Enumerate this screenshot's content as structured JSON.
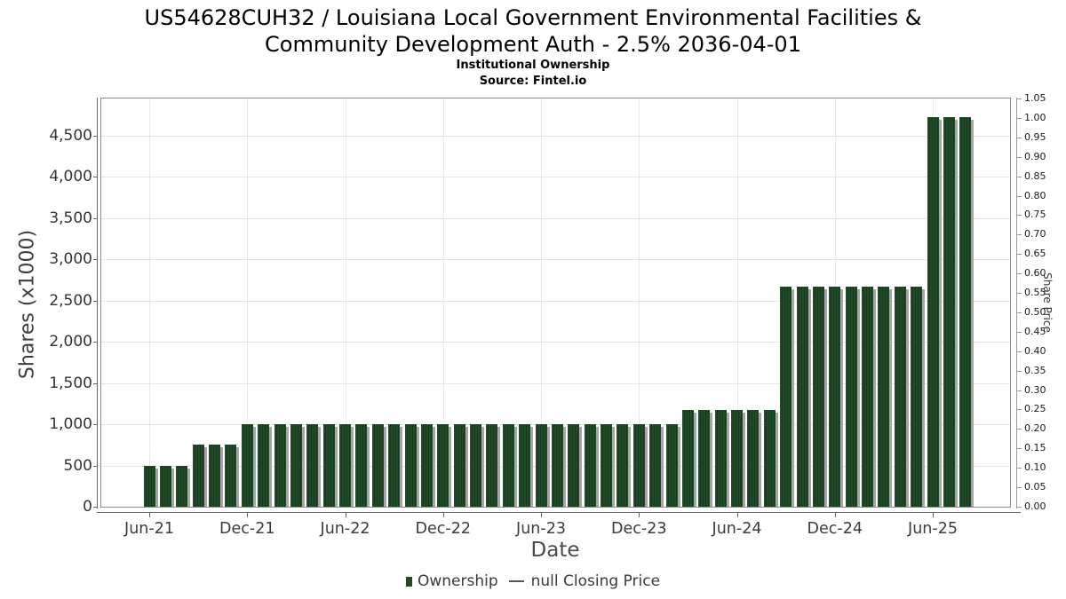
{
  "chart_data": {
    "type": "bar",
    "title": "US54628CUH32 / Louisiana Local Government Environmental Facilities & Community Development Auth - 2.5% 2036-04-01",
    "title_line1": "US54628CUH32 / Louisiana Local Government Environmental Facilities &",
    "title_line2": "Community Development Auth - 2.5% 2036-04-01",
    "subtitle": "Institutional Ownership",
    "source": "Source: Fintel.io",
    "xlabel": "Date",
    "ylabel_left": "Shares (x1000)",
    "ylabel_right": "Share Price",
    "legend_position": "bottom",
    "grid": true,
    "legend": [
      {
        "marker": "bar-swatch",
        "label": "Ownership",
        "color": "#204b26"
      },
      {
        "marker": "line-dash",
        "label": "null Closing Price",
        "color": "#555555"
      }
    ],
    "bar_color": "#204b26",
    "bar_stripe_color": "#16381c",
    "bar_shadow_color": "#a6a6a6",
    "categories": [
      "Jun-21",
      "Jul-21",
      "Aug-21",
      "Sep-21",
      "Oct-21",
      "Nov-21",
      "Dec-21",
      "Jan-22",
      "Feb-22",
      "Mar-22",
      "Apr-22",
      "May-22",
      "Jun-22",
      "Jul-22",
      "Aug-22",
      "Sep-22",
      "Oct-22",
      "Nov-22",
      "Dec-22",
      "Jan-23",
      "Feb-23",
      "Mar-23",
      "Apr-23",
      "May-23",
      "Jun-23",
      "Jul-23",
      "Aug-23",
      "Sep-23",
      "Oct-23",
      "Nov-23",
      "Dec-23",
      "Jan-24",
      "Feb-24",
      "Mar-24",
      "Apr-24",
      "May-24",
      "Jun-24",
      "Jul-24",
      "Aug-24",
      "Sep-24",
      "Oct-24",
      "Nov-24",
      "Dec-24",
      "Jan-25",
      "Feb-25",
      "Mar-25",
      "Apr-25",
      "May-25",
      "Jun-25",
      "Jul-25",
      "Aug-25"
    ],
    "series": [
      {
        "name": "Ownership",
        "axis": "left",
        "unit": "shares x1000",
        "values": [
          500,
          500,
          500,
          750,
          750,
          750,
          1000,
          1000,
          1000,
          1000,
          1000,
          1000,
          1000,
          1000,
          1000,
          1000,
          1000,
          1000,
          1000,
          1000,
          1000,
          1000,
          1000,
          1000,
          1000,
          1000,
          1000,
          1000,
          1000,
          1000,
          1000,
          1000,
          1000,
          1175,
          1175,
          1175,
          1175,
          1175,
          1175,
          2670,
          2670,
          2670,
          2670,
          2670,
          2670,
          2670,
          2670,
          2670,
          4720,
          4720,
          4720
        ]
      }
    ],
    "y_left": {
      "label": "Shares (x1000)",
      "axis_min": 0,
      "axis_max": 4950,
      "tick_values": [
        0,
        500,
        1000,
        1500,
        2000,
        2500,
        3000,
        3500,
        4000,
        4500
      ],
      "tick_labels": [
        "0",
        "500",
        "1,000",
        "1,500",
        "2,000",
        "2,500",
        "3,000",
        "3,500",
        "4,000",
        "4,500"
      ]
    },
    "y_right": {
      "label": "Share Price",
      "axis_min": 0,
      "axis_max": 1.05,
      "tick_step": 0.05,
      "tick_labels": [
        "0.00",
        "0.05",
        "0.10",
        "0.15",
        "0.20",
        "0.25",
        "0.30",
        "0.35",
        "0.40",
        "0.45",
        "0.50",
        "0.55",
        "0.60",
        "0.65",
        "0.70",
        "0.75",
        "0.80",
        "0.85",
        "0.90",
        "0.95",
        "1.00",
        "1.05"
      ]
    },
    "x_ticks": [
      {
        "label": "Jun-21",
        "month_index": 0
      },
      {
        "label": "Dec-21",
        "month_index": 6
      },
      {
        "label": "Jun-22",
        "month_index": 12
      },
      {
        "label": "Dec-22",
        "month_index": 18
      },
      {
        "label": "Jun-23",
        "month_index": 24
      },
      {
        "label": "Dec-23",
        "month_index": 30
      },
      {
        "label": "Jun-24",
        "month_index": 36
      },
      {
        "label": "Dec-24",
        "month_index": 42
      },
      {
        "label": "Jun-25",
        "month_index": 48
      }
    ]
  }
}
